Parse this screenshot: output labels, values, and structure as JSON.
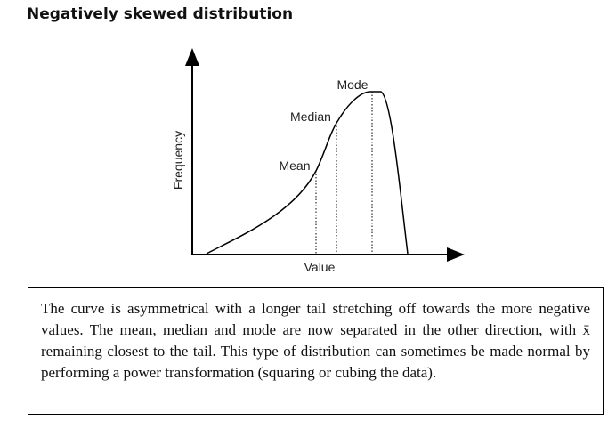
{
  "title": "Negatively skewed distribution",
  "diagram": {
    "y_axis_label": "Frequency",
    "x_axis_label": "Value",
    "labels": {
      "mean": "Mean",
      "median": "Median",
      "mode": "Mode"
    }
  },
  "note": {
    "text": "The curve is asymmetrical with a longer tail stretching off towards the more negative values. The mean, median and mode are now separated in the other direction, with x̄ remaining closest to the tail. This type of distribution can sometimes be made normal by performing a power transformation (squaring or cubing the data)."
  }
}
